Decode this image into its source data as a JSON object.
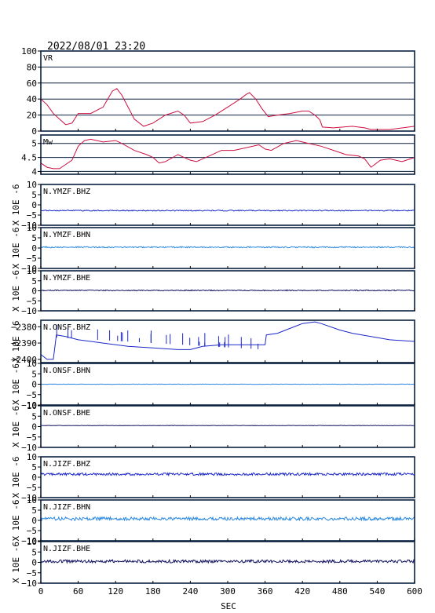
{
  "header": {
    "timestamp": "2022/08/01 23:20"
  },
  "y_axis_unit": "X 10E -6",
  "x_axis_label": "SEC",
  "x_axis_ticks": [
    0,
    60,
    120,
    180,
    240,
    300,
    360,
    420,
    480,
    540,
    600
  ],
  "colors": {
    "vr": "#cc1040",
    "mw": "#cc1040",
    "bhz": "#1c28c8",
    "bhn": "#2a88e0",
    "bhe": "#101060",
    "frame": "#0a2040"
  },
  "chart_data": [
    {
      "type": "line",
      "label": "VR",
      "xlim": [
        0,
        600
      ],
      "ylim": [
        0,
        100
      ],
      "yticks": [
        0,
        20,
        40,
        60,
        80,
        100
      ],
      "grid": true,
      "color": "#cc1040",
      "points": [
        [
          0,
          40
        ],
        [
          10,
          33
        ],
        [
          20,
          22
        ],
        [
          30,
          15
        ],
        [
          40,
          8
        ],
        [
          50,
          10
        ],
        [
          60,
          22
        ],
        [
          80,
          22
        ],
        [
          100,
          30
        ],
        [
          115,
          50
        ],
        [
          122,
          53
        ],
        [
          130,
          45
        ],
        [
          140,
          30
        ],
        [
          150,
          15
        ],
        [
          165,
          6
        ],
        [
          180,
          10
        ],
        [
          200,
          20
        ],
        [
          220,
          25
        ],
        [
          230,
          20
        ],
        [
          240,
          10
        ],
        [
          260,
          12
        ],
        [
          280,
          20
        ],
        [
          300,
          30
        ],
        [
          320,
          40
        ],
        [
          330,
          46
        ],
        [
          335,
          48
        ],
        [
          345,
          40
        ],
        [
          355,
          28
        ],
        [
          365,
          18
        ],
        [
          380,
          20
        ],
        [
          400,
          22
        ],
        [
          420,
          25
        ],
        [
          430,
          25
        ],
        [
          440,
          20
        ],
        [
          448,
          14
        ],
        [
          452,
          5
        ],
        [
          470,
          4
        ],
        [
          500,
          6
        ],
        [
          520,
          4
        ],
        [
          530,
          2
        ],
        [
          560,
          2
        ],
        [
          600,
          6
        ]
      ]
    },
    {
      "type": "line",
      "label": "Mw",
      "xlim": [
        0,
        600
      ],
      "ylim": [
        3.9,
        5.3
      ],
      "yticks": [
        4.0,
        4.5,
        5.0
      ],
      "grid": true,
      "color": "#cc1040",
      "points": [
        [
          0,
          4.3
        ],
        [
          10,
          4.15
        ],
        [
          20,
          4.1
        ],
        [
          30,
          4.1
        ],
        [
          40,
          4.25
        ],
        [
          50,
          4.4
        ],
        [
          60,
          4.9
        ],
        [
          70,
          5.1
        ],
        [
          80,
          5.15
        ],
        [
          90,
          5.1
        ],
        [
          100,
          5.05
        ],
        [
          120,
          5.1
        ],
        [
          130,
          5.0
        ],
        [
          150,
          4.75
        ],
        [
          170,
          4.6
        ],
        [
          180,
          4.5
        ],
        [
          190,
          4.3
        ],
        [
          200,
          4.35
        ],
        [
          220,
          4.6
        ],
        [
          230,
          4.5
        ],
        [
          240,
          4.4
        ],
        [
          250,
          4.35
        ],
        [
          270,
          4.55
        ],
        [
          290,
          4.75
        ],
        [
          310,
          4.75
        ],
        [
          330,
          4.85
        ],
        [
          350,
          4.95
        ],
        [
          360,
          4.8
        ],
        [
          370,
          4.75
        ],
        [
          390,
          5.0
        ],
        [
          410,
          5.1
        ],
        [
          430,
          5.0
        ],
        [
          450,
          4.9
        ],
        [
          470,
          4.75
        ],
        [
          490,
          4.6
        ],
        [
          510,
          4.55
        ],
        [
          520,
          4.45
        ],
        [
          530,
          4.15
        ],
        [
          545,
          4.4
        ],
        [
          560,
          4.45
        ],
        [
          580,
          4.35
        ],
        [
          600,
          4.5
        ]
      ]
    },
    {
      "type": "line",
      "label": "N.YMZF.BHZ",
      "xlim": [
        0,
        600
      ],
      "ylim": [
        -10,
        10
      ],
      "yticks": [
        -10,
        -5,
        0,
        5,
        10
      ],
      "color": "#1c28c8",
      "baseline": -2.8,
      "noise_amplitude": 0.25
    },
    {
      "type": "line",
      "label": "N.YMZF.BHN",
      "xlim": [
        0,
        600
      ],
      "ylim": [
        -10,
        10
      ],
      "yticks": [
        -10,
        -5,
        0,
        5,
        10
      ],
      "color": "#2a88e0",
      "baseline": 0.4,
      "noise_amplitude": 0.3
    },
    {
      "type": "line",
      "label": "N.YMZF.BHE",
      "xlim": [
        0,
        600
      ],
      "ylim": [
        -10,
        10
      ],
      "yticks": [
        -10,
        -5,
        0,
        5,
        10
      ],
      "color": "#101060",
      "baseline": 0.2,
      "noise_amplitude": 0.25
    },
    {
      "type": "line",
      "label": "N.ONSF.BHZ",
      "xlim": [
        0,
        600
      ],
      "ylim": [
        -2402,
        -2376
      ],
      "yticks": [
        -2400,
        -2390,
        -2380
      ],
      "color": "#1c28c8",
      "points": [
        [
          0,
          -2397
        ],
        [
          10,
          -2400
        ],
        [
          20,
          -2400
        ],
        [
          25,
          -2385
        ],
        [
          40,
          -2386
        ],
        [
          60,
          -2388
        ],
        [
          100,
          -2390
        ],
        [
          140,
          -2392
        ],
        [
          180,
          -2393
        ],
        [
          220,
          -2394
        ],
        [
          240,
          -2394
        ],
        [
          260,
          -2392
        ],
        [
          290,
          -2391
        ],
        [
          310,
          -2391
        ],
        [
          330,
          -2391
        ],
        [
          360,
          -2391
        ],
        [
          362,
          -2385
        ],
        [
          380,
          -2384
        ],
        [
          400,
          -2381
        ],
        [
          420,
          -2378
        ],
        [
          440,
          -2377
        ],
        [
          450,
          -2378
        ],
        [
          480,
          -2382
        ],
        [
          500,
          -2384
        ],
        [
          530,
          -2386
        ],
        [
          560,
          -2388
        ],
        [
          600,
          -2389
        ]
      ]
    },
    {
      "type": "line",
      "label": "N.ONSF.BHN",
      "xlim": [
        0,
        600
      ],
      "ylim": [
        -10,
        10
      ],
      "yticks": [
        -10,
        -5,
        0,
        5,
        10
      ],
      "color": "#2a88e0",
      "baseline": 0.0,
      "noise_amplitude": 0.08
    },
    {
      "type": "line",
      "label": "N.ONSF.BHE",
      "xlim": [
        0,
        600
      ],
      "ylim": [
        -10,
        10
      ],
      "yticks": [
        -10,
        -5,
        0,
        5,
        10
      ],
      "color": "#101060",
      "baseline": 0.5,
      "noise_amplitude": 0.1
    },
    {
      "type": "line",
      "label": "N.JIZF.BHZ",
      "xlim": [
        0,
        600
      ],
      "ylim": [
        -10,
        10
      ],
      "yticks": [
        -10,
        -5,
        0,
        5,
        10
      ],
      "color": "#1c28c8",
      "baseline": 1.5,
      "noise_amplitude": 0.6
    },
    {
      "type": "line",
      "label": "N.JIZF.BHN",
      "xlim": [
        0,
        600
      ],
      "ylim": [
        -10,
        10
      ],
      "yticks": [
        -10,
        -5,
        0,
        5,
        10
      ],
      "color": "#2a88e0",
      "baseline": 0.8,
      "noise_amplitude": 0.8
    },
    {
      "type": "line",
      "label": "N.JIZF.BHE",
      "xlim": [
        0,
        600
      ],
      "ylim": [
        -10,
        10
      ],
      "yticks": [
        -10,
        -5,
        0,
        5,
        10
      ],
      "color": "#101060",
      "baseline": 0.5,
      "noise_amplitude": 0.7
    }
  ]
}
